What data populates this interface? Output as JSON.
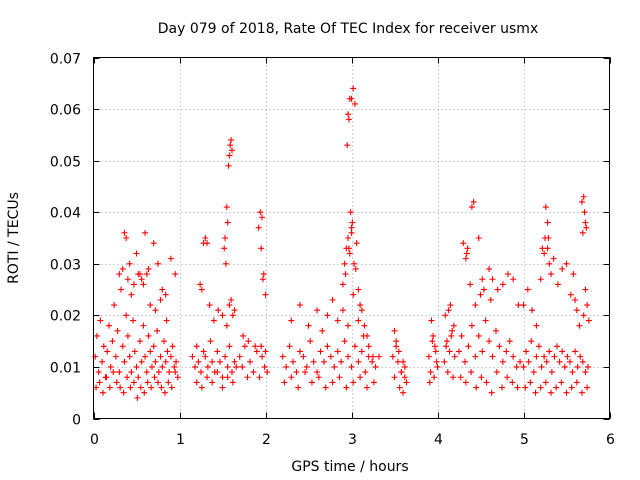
{
  "chart_data": {
    "type": "scatter",
    "title": "Day 079 of 2018, Rate Of TEC Index for receiver usmx",
    "xlabel": "GPS time / hours",
    "ylabel": "ROTI / TECUs",
    "xlim": [
      0,
      6
    ],
    "ylim": [
      0,
      0.07
    ],
    "xticks": [
      "0",
      "1",
      "2",
      "3",
      "4",
      "5",
      "6"
    ],
    "yticks": [
      "0",
      "0.01",
      "0.02",
      "0.03",
      "0.04",
      "0.05",
      "0.06",
      "0.07"
    ],
    "grid": true,
    "marker": "+",
    "color": "#ff0000",
    "series": [
      {
        "name": "ROTI",
        "x": [
          0.02,
          0.04,
          0.06,
          0.08,
          0.1,
          0.12,
          0.14,
          0.16,
          0.18,
          0.2,
          0.22,
          0.24,
          0.26,
          0.28,
          0.3,
          0.32,
          0.34,
          0.36,
          0.38,
          0.4,
          0.42,
          0.44,
          0.46,
          0.48,
          0.5,
          0.52,
          0.54,
          0.56,
          0.58,
          0.6,
          0.62,
          0.64,
          0.66,
          0.68,
          0.7,
          0.72,
          0.74,
          0.76,
          0.78,
          0.8,
          0.82,
          0.84,
          0.86,
          0.88,
          0.9,
          0.92,
          0.94,
          0.96,
          0.98,
          0.03,
          0.07,
          0.11,
          0.15,
          0.19,
          0.23,
          0.27,
          0.31,
          0.35,
          0.39,
          0.43,
          0.47,
          0.51,
          0.55,
          0.59,
          0.63,
          0.67,
          0.71,
          0.75,
          0.79,
          0.83,
          0.87,
          0.91,
          0.95,
          0.36,
          0.38,
          0.42,
          0.47,
          0.52,
          0.56,
          0.6,
          0.64,
          0.7,
          0.75,
          0.8,
          0.84,
          0.9,
          0.95,
          0.3,
          0.34,
          0.4,
          0.44,
          0.5,
          0.54,
          0.58,
          0.62,
          0.66,
          0.72,
          0.78,
          0.85,
          1.15,
          1.18,
          1.2,
          1.22,
          1.25,
          1.28,
          1.3,
          1.33,
          1.36,
          1.38,
          1.41,
          1.44,
          1.47,
          1.5,
          1.53,
          1.56,
          1.58,
          1.61,
          1.64,
          1.66,
          1.2,
          1.26,
          1.32,
          1.38,
          1.44,
          1.5,
          1.56,
          1.62,
          1.24,
          1.26,
          1.28,
          1.3,
          1.32,
          1.35,
          1.4,
          1.45,
          1.5,
          1.55,
          1.58,
          1.6,
          1.62,
          1.64,
          1.55,
          1.56,
          1.57,
          1.58,
          1.59,
          1.6,
          1.61,
          1.52,
          1.53,
          1.54,
          1.7,
          1.73,
          1.76,
          1.79,
          1.82,
          1.86,
          1.9,
          1.93,
          1.96,
          1.99,
          2.02,
          1.74,
          1.8,
          1.88,
          1.95,
          2.0,
          1.92,
          1.94,
          1.96,
          1.95,
          1.97,
          1.98,
          2.0,
          2.2,
          2.24,
          2.28,
          2.32,
          2.36,
          2.4,
          2.44,
          2.48,
          2.52,
          2.56,
          2.6,
          2.64,
          2.68,
          2.72,
          2.76,
          2.8,
          2.84,
          2.88,
          2.92,
          2.96,
          3.0,
          3.04,
          3.08,
          3.12,
          3.16,
          3.2,
          3.24,
          3.28,
          3.32,
          2.22,
          2.3,
          2.38,
          2.46,
          2.54,
          2.62,
          2.7,
          2.78,
          2.86,
          2.94,
          3.02,
          3.1,
          3.18,
          3.26,
          2.3,
          2.4,
          2.5,
          2.6,
          2.66,
          2.72,
          2.78,
          2.84,
          2.9,
          2.96,
          3.02,
          3.08,
          3.14,
          3.2,
          3.25,
          2.9,
          2.92,
          2.94,
          2.96,
          2.98,
          3.0,
          3.02,
          3.04,
          2.95,
          2.96,
          2.97,
          2.98,
          2.99,
          3.0,
          3.01,
          3.03,
          3.05,
          3.08,
          3.1,
          3.12,
          3.15,
          3.18,
          2.93,
          2.97,
          3.0,
          3.06,
          3.48,
          3.5,
          3.52,
          3.54,
          3.56,
          3.58,
          3.6,
          3.62,
          3.64,
          3.5,
          3.55,
          3.6,
          3.52,
          3.58,
          3.62,
          3.9,
          3.92,
          3.94,
          3.96,
          3.98,
          4.0,
          3.91,
          3.95,
          3.99,
          3.93,
          3.97,
          4.08,
          4.1,
          4.12,
          4.14,
          4.16,
          4.18,
          4.2,
          4.09,
          4.13,
          4.17,
          4.11,
          4.15,
          4.19,
          4.25,
          4.28,
          4.32,
          4.36,
          4.4,
          4.44,
          4.48,
          4.52,
          4.56,
          4.6,
          4.64,
          4.68,
          4.72,
          4.76,
          4.8,
          4.84,
          4.88,
          4.92,
          4.96,
          4.27,
          4.33,
          4.39,
          4.45,
          4.51,
          4.57,
          4.63,
          4.69,
          4.75,
          4.81,
          4.87,
          4.93,
          4.3,
          4.34,
          4.38,
          4.44,
          4.48,
          4.5,
          4.52,
          4.54,
          4.6,
          4.62,
          4.64,
          4.7,
          4.76,
          4.82,
          4.88,
          4.94,
          4.4,
          4.42,
          4.35,
          4.33,
          5.0,
          5.03,
          5.06,
          5.09,
          5.12,
          5.15,
          5.18,
          5.21,
          5.24,
          5.27,
          5.3,
          5.33,
          5.36,
          5.39,
          5.42,
          5.45,
          5.48,
          5.51,
          5.54,
          5.57,
          5.6,
          5.63,
          5.66,
          5.69,
          5.72,
          5.75,
          5.02,
          5.08,
          5.14,
          5.2,
          5.26,
          5.32,
          5.38,
          5.44,
          5.5,
          5.56,
          5.62,
          5.68,
          5.74,
          5.0,
          5.05,
          5.1,
          5.15,
          5.2,
          5.25,
          5.28,
          5.3,
          5.32,
          5.35,
          5.4,
          5.45,
          5.5,
          5.55,
          5.58,
          5.6,
          5.62,
          5.65,
          5.7,
          5.72,
          5.74,
          5.76,
          5.22,
          5.24,
          5.26,
          5.28,
          5.29,
          5.68,
          5.7,
          5.72,
          5.71,
          5.73,
          5.69
        ],
        "y": [
          0.012,
          0.016,
          0.009,
          0.019,
          0.011,
          0.014,
          0.008,
          0.013,
          0.018,
          0.01,
          0.015,
          0.022,
          0.012,
          0.017,
          0.009,
          0.025,
          0.014,
          0.011,
          0.02,
          0.016,
          0.012,
          0.009,
          0.019,
          0.013,
          0.01,
          0.008,
          0.015,
          0.011,
          0.018,
          0.012,
          0.009,
          0.016,
          0.013,
          0.01,
          0.014,
          0.011,
          0.017,
          0.009,
          0.012,
          0.01,
          0.015,
          0.011,
          0.013,
          0.009,
          0.012,
          0.014,
          0.01,
          0.011,
          0.008,
          0.006,
          0.007,
          0.005,
          0.008,
          0.006,
          0.009,
          0.007,
          0.006,
          0.005,
          0.008,
          0.006,
          0.007,
          0.004,
          0.006,
          0.005,
          0.007,
          0.006,
          0.008,
          0.007,
          0.006,
          0.005,
          0.007,
          0.006,
          0.009,
          0.036,
          0.035,
          0.03,
          0.026,
          0.028,
          0.027,
          0.036,
          0.029,
          0.034,
          0.03,
          0.025,
          0.024,
          0.031,
          0.028,
          0.028,
          0.029,
          0.027,
          0.024,
          0.032,
          0.028,
          0.026,
          0.028,
          0.022,
          0.021,
          0.023,
          0.019,
          0.012,
          0.01,
          0.014,
          0.011,
          0.009,
          0.013,
          0.012,
          0.01,
          0.015,
          0.011,
          0.009,
          0.013,
          0.011,
          0.008,
          0.012,
          0.01,
          0.014,
          0.009,
          0.011,
          0.01,
          0.007,
          0.006,
          0.008,
          0.007,
          0.009,
          0.006,
          0.008,
          0.007,
          0.026,
          0.025,
          0.034,
          0.035,
          0.034,
          0.022,
          0.019,
          0.021,
          0.02,
          0.018,
          0.022,
          0.023,
          0.02,
          0.021,
          0.041,
          0.038,
          0.049,
          0.051,
          0.053,
          0.054,
          0.052,
          0.033,
          0.035,
          0.03,
          0.012,
          0.01,
          0.014,
          0.008,
          0.011,
          0.009,
          0.013,
          0.008,
          0.012,
          0.01,
          0.009,
          0.016,
          0.015,
          0.014,
          0.014,
          0.013,
          0.037,
          0.04,
          0.039,
          0.033,
          0.027,
          0.028,
          0.024,
          0.012,
          0.01,
          0.014,
          0.011,
          0.009,
          0.013,
          0.012,
          0.01,
          0.015,
          0.011,
          0.009,
          0.013,
          0.011,
          0.014,
          0.012,
          0.01,
          0.013,
          0.011,
          0.015,
          0.012,
          0.01,
          0.014,
          0.011,
          0.013,
          0.009,
          0.012,
          0.011,
          0.01,
          0.012,
          0.007,
          0.008,
          0.006,
          0.009,
          0.007,
          0.008,
          0.006,
          0.007,
          0.008,
          0.006,
          0.007,
          0.008,
          0.006,
          0.007,
          0.019,
          0.022,
          0.018,
          0.021,
          0.017,
          0.02,
          0.023,
          0.019,
          0.021,
          0.018,
          0.024,
          0.019,
          0.016,
          0.014,
          0.012,
          0.026,
          0.03,
          0.033,
          0.035,
          0.032,
          0.062,
          0.064,
          0.061,
          0.053,
          0.059,
          0.058,
          0.062,
          0.04,
          0.036,
          0.038,
          0.03,
          0.029,
          0.025,
          0.022,
          0.021,
          0.018,
          0.016,
          0.028,
          0.033,
          0.037,
          0.034,
          0.012,
          0.008,
          0.014,
          0.011,
          0.006,
          0.009,
          0.005,
          0.01,
          0.007,
          0.017,
          0.013,
          0.011,
          0.015,
          0.009,
          0.008,
          0.012,
          0.009,
          0.015,
          0.008,
          0.013,
          0.01,
          0.007,
          0.016,
          0.011,
          0.019,
          0.014,
          0.011,
          0.014,
          0.009,
          0.013,
          0.016,
          0.008,
          0.012,
          0.02,
          0.021,
          0.017,
          0.015,
          0.022,
          0.018,
          0.013,
          0.016,
          0.011,
          0.014,
          0.018,
          0.012,
          0.016,
          0.013,
          0.019,
          0.015,
          0.012,
          0.017,
          0.014,
          0.011,
          0.013,
          0.015,
          0.012,
          0.01,
          0.011,
          0.008,
          0.007,
          0.009,
          0.006,
          0.008,
          0.007,
          0.005,
          0.009,
          0.006,
          0.008,
          0.007,
          0.006,
          0.034,
          0.032,
          0.026,
          0.022,
          0.035,
          0.024,
          0.027,
          0.025,
          0.029,
          0.023,
          0.027,
          0.025,
          0.026,
          0.028,
          0.027,
          0.022,
          0.041,
          0.042,
          0.033,
          0.031,
          0.01,
          0.013,
          0.011,
          0.015,
          0.009,
          0.012,
          0.014,
          0.01,
          0.012,
          0.011,
          0.013,
          0.009,
          0.012,
          0.014,
          0.011,
          0.013,
          0.01,
          0.012,
          0.011,
          0.009,
          0.013,
          0.01,
          0.012,
          0.011,
          0.009,
          0.01,
          0.006,
          0.007,
          0.005,
          0.006,
          0.007,
          0.005,
          0.006,
          0.007,
          0.005,
          0.006,
          0.007,
          0.005,
          0.006,
          0.022,
          0.025,
          0.021,
          0.018,
          0.027,
          0.035,
          0.033,
          0.03,
          0.028,
          0.031,
          0.026,
          0.029,
          0.03,
          0.024,
          0.028,
          0.023,
          0.021,
          0.018,
          0.02,
          0.025,
          0.022,
          0.019,
          0.033,
          0.032,
          0.041,
          0.038,
          0.035,
          0.042,
          0.043,
          0.038,
          0.04,
          0.037,
          0.036
        ]
      }
    ]
  }
}
